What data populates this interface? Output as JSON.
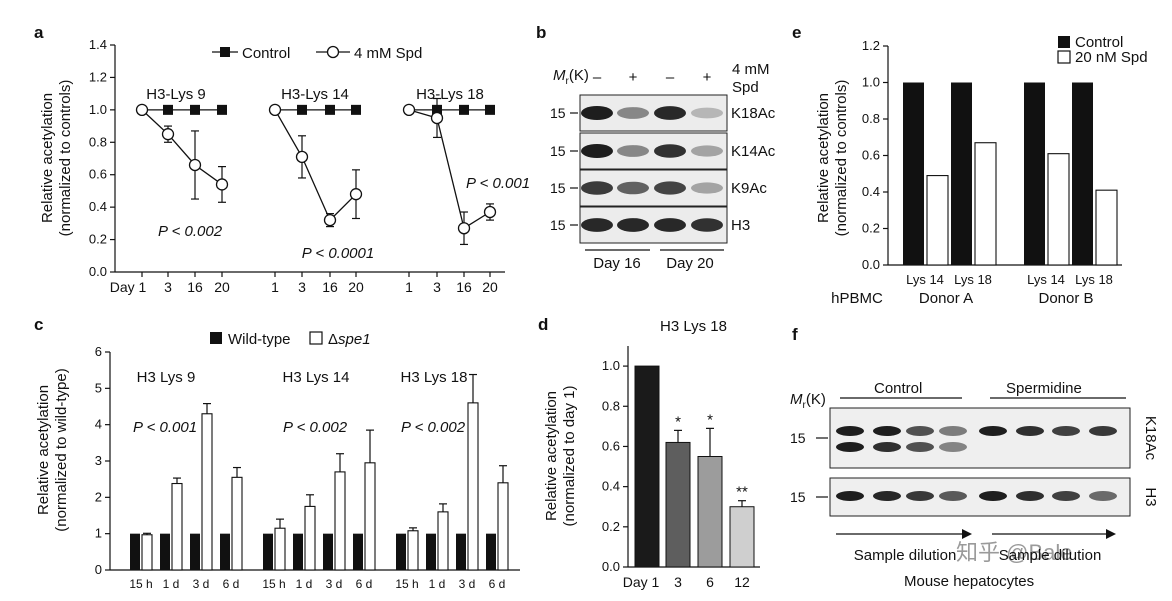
{
  "panel_letters": {
    "a": "a",
    "b": "b",
    "c": "c",
    "d": "d",
    "e": "e",
    "f": "f"
  },
  "chart_data": [
    {
      "panel": "a",
      "type": "line",
      "ylabel": [
        "Relative acetylation",
        "(normalized to controls)"
      ],
      "ylim": [
        0,
        1.4
      ],
      "yticks": [
        "0.0",
        "0.2",
        "0.4",
        "0.6",
        "0.8",
        "1.0",
        "1.2",
        "1.4"
      ],
      "legend": {
        "position": "top",
        "items": [
          "Control",
          "4 mM Spd"
        ]
      },
      "x_first_prefix": "Day",
      "groups": [
        {
          "title": "H3-Lys 9",
          "x": [
            "1",
            "3",
            "16",
            "20"
          ],
          "series": [
            {
              "name": "Control",
              "values": [
                1.0,
                1.0,
                1.0,
                1.0
              ]
            },
            {
              "name": "4 mM Spd",
              "values": [
                1.0,
                0.85,
                0.66,
                0.54
              ],
              "errors": [
                0,
                0.05,
                0.21,
                0.11
              ]
            }
          ],
          "annotation": "P < 0.002"
        },
        {
          "title": "H3-Lys 14",
          "x": [
            "1",
            "3",
            "16",
            "20"
          ],
          "series": [
            {
              "name": "Control",
              "values": [
                1.0,
                1.0,
                1.0,
                1.0
              ]
            },
            {
              "name": "4 mM Spd",
              "values": [
                1.0,
                0.71,
                0.32,
                0.48
              ],
              "errors": [
                0,
                0.13,
                0.04,
                0.15
              ]
            }
          ],
          "annotation": "P < 0.0001"
        },
        {
          "title": "H3-Lys 18",
          "x": [
            "1",
            "3",
            "16",
            "20"
          ],
          "series": [
            {
              "name": "Control",
              "values": [
                1.0,
                1.0,
                1.0,
                1.0
              ]
            },
            {
              "name": "4 mM Spd",
              "values": [
                1.0,
                0.95,
                0.27,
                0.37
              ],
              "errors": [
                0,
                0.12,
                0.1,
                0.05
              ]
            }
          ],
          "annotation": "P < 0.001"
        }
      ]
    },
    {
      "panel": "c",
      "type": "bar",
      "ylabel": [
        "Relative acetylation",
        "(normalized to wild-type)"
      ],
      "ylim": [
        0,
        6
      ],
      "yticks": [
        "0",
        "1",
        "2",
        "3",
        "4",
        "5",
        "6"
      ],
      "legend": {
        "position": "top",
        "items": [
          "Wild-type",
          "Δspe1"
        ]
      },
      "groups": [
        {
          "title": "H3 Lys 9",
          "categories": [
            "15 h",
            "1 d",
            "3 d",
            "6 d"
          ],
          "series": [
            {
              "name": "Wild-type",
              "values": [
                1,
                1,
                1,
                1
              ]
            },
            {
              "name": "Δspe1",
              "values": [
                0.97,
                2.38,
                4.3,
                2.55
              ],
              "errors": [
                0.04,
                0.15,
                0.28,
                0.27
              ]
            }
          ],
          "annotation": "P < 0.001"
        },
        {
          "title": "H3 Lys 14",
          "categories": [
            "15 h",
            "1 d",
            "3 d",
            "6 d"
          ],
          "series": [
            {
              "name": "Wild-type",
              "values": [
                1,
                1,
                1,
                1
              ]
            },
            {
              "name": "Δspe1",
              "values": [
                1.15,
                1.75,
                2.7,
                2.95
              ],
              "errors": [
                0.25,
                0.32,
                0.5,
                0.9
              ]
            }
          ],
          "annotation": "P < 0.002"
        },
        {
          "title": "H3 Lys 18",
          "categories": [
            "15 h",
            "1 d",
            "3 d",
            "6 d"
          ],
          "series": [
            {
              "name": "Wild-type",
              "values": [
                1,
                1,
                1,
                1
              ]
            },
            {
              "name": "Δspe1",
              "values": [
                1.08,
                1.6,
                4.6,
                2.4
              ],
              "errors": [
                0.08,
                0.22,
                0.78,
                0.47
              ]
            }
          ],
          "annotation": "P < 0.002"
        }
      ]
    },
    {
      "panel": "d",
      "type": "bar",
      "title": "H3 Lys 18",
      "ylabel": [
        "Relative acetylation",
        "(normalized to day 1)"
      ],
      "ylim": [
        0,
        1.1
      ],
      "yticks": [
        "0.0",
        "0.2",
        "0.4",
        "0.6",
        "0.8",
        "1.0"
      ],
      "x_first_prefix": "Day",
      "categories": [
        "1",
        "3",
        "6",
        "12"
      ],
      "values": [
        1.0,
        0.62,
        0.55,
        0.3
      ],
      "errors": [
        0,
        0.06,
        0.14,
        0.03
      ],
      "significance": [
        "",
        "*",
        "*",
        "**"
      ],
      "colors": [
        "#1a1a1a",
        "#5e5e5e",
        "#9c9c9c",
        "#cfcfcf"
      ]
    },
    {
      "panel": "e",
      "type": "bar",
      "ylabel": [
        "Relative acetylation",
        "(normalized to controls)"
      ],
      "ylim": [
        0,
        1.2
      ],
      "yticks": [
        "0.0",
        "0.2",
        "0.4",
        "0.6",
        "0.8",
        "1.0",
        "1.2"
      ],
      "legend": {
        "position": "top-right",
        "items": [
          "Control",
          "20 nM Spd"
        ]
      },
      "row_label": "hPBMC",
      "groups": [
        {
          "donor": "Donor A",
          "categories": [
            "Lys 14",
            "Lys 18"
          ],
          "series": [
            {
              "name": "Control",
              "values": [
                1.0,
                1.0
              ]
            },
            {
              "name": "20 nM Spd",
              "values": [
                0.49,
                0.67
              ]
            }
          ]
        },
        {
          "donor": "Donor B",
          "categories": [
            "Lys 14",
            "Lys 18"
          ],
          "series": [
            {
              "name": "Control",
              "values": [
                1.0,
                1.0
              ]
            },
            {
              "name": "20 nM Spd",
              "values": [
                0.61,
                0.41
              ]
            }
          ]
        }
      ]
    }
  ],
  "blot_b": {
    "mr_label": "M",
    "mr_sub": "r",
    "mr_unit": "(K)",
    "treatment_label": [
      "4 mM",
      "Spd"
    ],
    "lane_signs": [
      "–",
      "+",
      "–",
      "+"
    ],
    "rows": [
      {
        "marker": "15",
        "label": "K18Ac",
        "intensity": [
          1.0,
          0.45,
          0.95,
          0.2
        ]
      },
      {
        "marker": "15",
        "label": "K14Ac",
        "intensity": [
          1.0,
          0.45,
          0.9,
          0.3
        ]
      },
      {
        "marker": "15",
        "label": "K9Ac",
        "intensity": [
          0.85,
          0.65,
          0.8,
          0.3
        ]
      },
      {
        "marker": "15",
        "label": "H3",
        "intensity": [
          0.95,
          0.95,
          0.95,
          0.9
        ]
      }
    ],
    "groups": [
      "Day 16",
      "Day 20"
    ]
  },
  "blot_f": {
    "mr_label": "M",
    "mr_sub": "r",
    "mr_unit": "(K)",
    "group_labels": [
      "Control",
      "Spermidine"
    ],
    "rows": [
      {
        "marker": "15",
        "label": "K18Ac"
      },
      {
        "marker": "15",
        "label": "H3"
      }
    ],
    "arrow_label": "Sample dilution",
    "caption": "Mouse hepatocytes"
  },
  "watermark": "知乎 @Bale"
}
